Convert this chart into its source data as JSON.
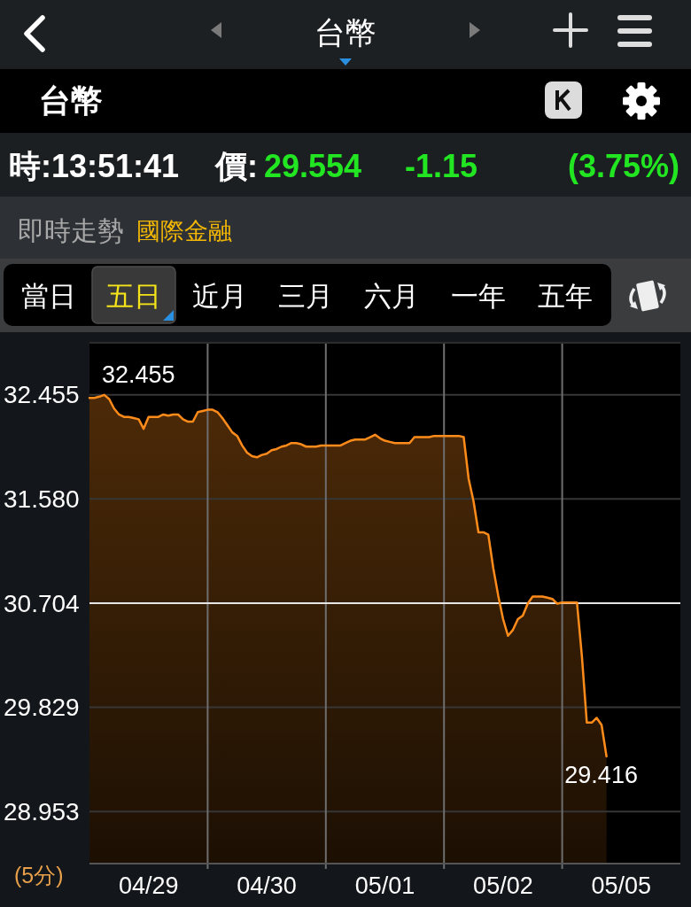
{
  "chart_data": {
    "type": "area",
    "title": "台幣",
    "subtitle": "即時走勢",
    "categories": [
      null,
      null,
      null,
      null,
      null,
      null,
      null,
      null,
      null,
      null,
      null,
      null,
      "04/29",
      null,
      null,
      null,
      null,
      null,
      null,
      null,
      null,
      null,
      null,
      null,
      null,
      null,
      null,
      null,
      null,
      null,
      null,
      null,
      null,
      null,
      null,
      null,
      "04/30",
      null,
      null,
      null,
      null,
      null,
      null,
      null,
      null,
      null,
      null,
      null,
      null,
      null,
      null,
      null,
      null,
      null,
      null,
      null,
      null,
      null,
      null,
      null,
      "05/01",
      null,
      null,
      null,
      null,
      null,
      null,
      null,
      null,
      null,
      null,
      null,
      null,
      null,
      null,
      null,
      null,
      null,
      null,
      null,
      null,
      null,
      null,
      null,
      "05/02",
      null,
      null,
      null,
      null,
      null,
      null,
      null,
      null,
      null,
      null,
      null,
      null,
      null,
      null,
      null,
      null,
      null,
      null,
      null,
      null,
      null,
      null,
      null,
      "05/05",
      null,
      null,
      null,
      null,
      null,
      null,
      null,
      null,
      null,
      null,
      null,
      null
    ],
    "values": [
      32.43,
      32.43,
      32.44,
      32.455,
      32.42,
      32.34,
      32.29,
      32.27,
      32.27,
      32.26,
      32.25,
      32.17,
      32.27,
      32.27,
      32.27,
      32.29,
      32.28,
      32.29,
      32.29,
      32.25,
      32.23,
      32.23,
      32.31,
      32.32,
      32.33,
      32.33,
      32.31,
      32.26,
      32.2,
      32.14,
      32.11,
      32.03,
      31.97,
      31.94,
      31.93,
      31.95,
      31.96,
      31.99,
      32.0,
      32.02,
      32.03,
      32.05,
      32.05,
      32.04,
      32.02,
      32.02,
      32.02,
      32.03,
      32.03,
      32.03,
      32.03,
      32.03,
      32.05,
      32.07,
      32.08,
      32.08,
      32.08,
      32.1,
      32.12,
      32.09,
      32.07,
      32.06,
      32.05,
      32.05,
      32.05,
      32.05,
      32.1,
      32.1,
      32.1,
      32.1,
      32.11,
      32.11,
      32.11,
      32.11,
      32.11,
      32.11,
      32.1,
      31.75,
      31.56,
      31.3,
      31.3,
      31.28,
      31.0,
      30.77,
      30.57,
      30.43,
      30.48,
      30.57,
      30.6,
      30.7,
      30.76,
      30.76,
      30.76,
      30.75,
      30.74,
      30.7,
      30.71,
      30.71,
      30.71,
      30.71,
      30.26,
      29.7,
      29.7,
      29.74,
      29.68,
      29.416,
      null,
      null,
      null,
      null,
      null,
      null,
      null,
      null,
      null,
      null,
      null,
      null,
      null,
      null,
      null
    ],
    "color": "#ff8c1a",
    "ylim": [
      28.515,
      32.893
    ],
    "yticks": [
      32.455,
      {
        "value": 31.58,
        "label": "31.580"
      },
      30.704,
      29.829,
      28.953
    ],
    "grid": true,
    "ref_lines": [
      {
        "axis": "y",
        "value": 30.704,
        "color": "#e6e6e6"
      }
    ],
    "annotations": [
      "台幣",
      "時:13:51:41",
      "價:",
      "29.554",
      "-1.15",
      "(3.75%)",
      "國際金融",
      "當日",
      "五日",
      "近月",
      "三月",
      "六月",
      "一年",
      "五年",
      "(5分)",
      "32.455",
      {
        "text": "29.416",
        "y": 29.416
      }
    ]
  }
}
